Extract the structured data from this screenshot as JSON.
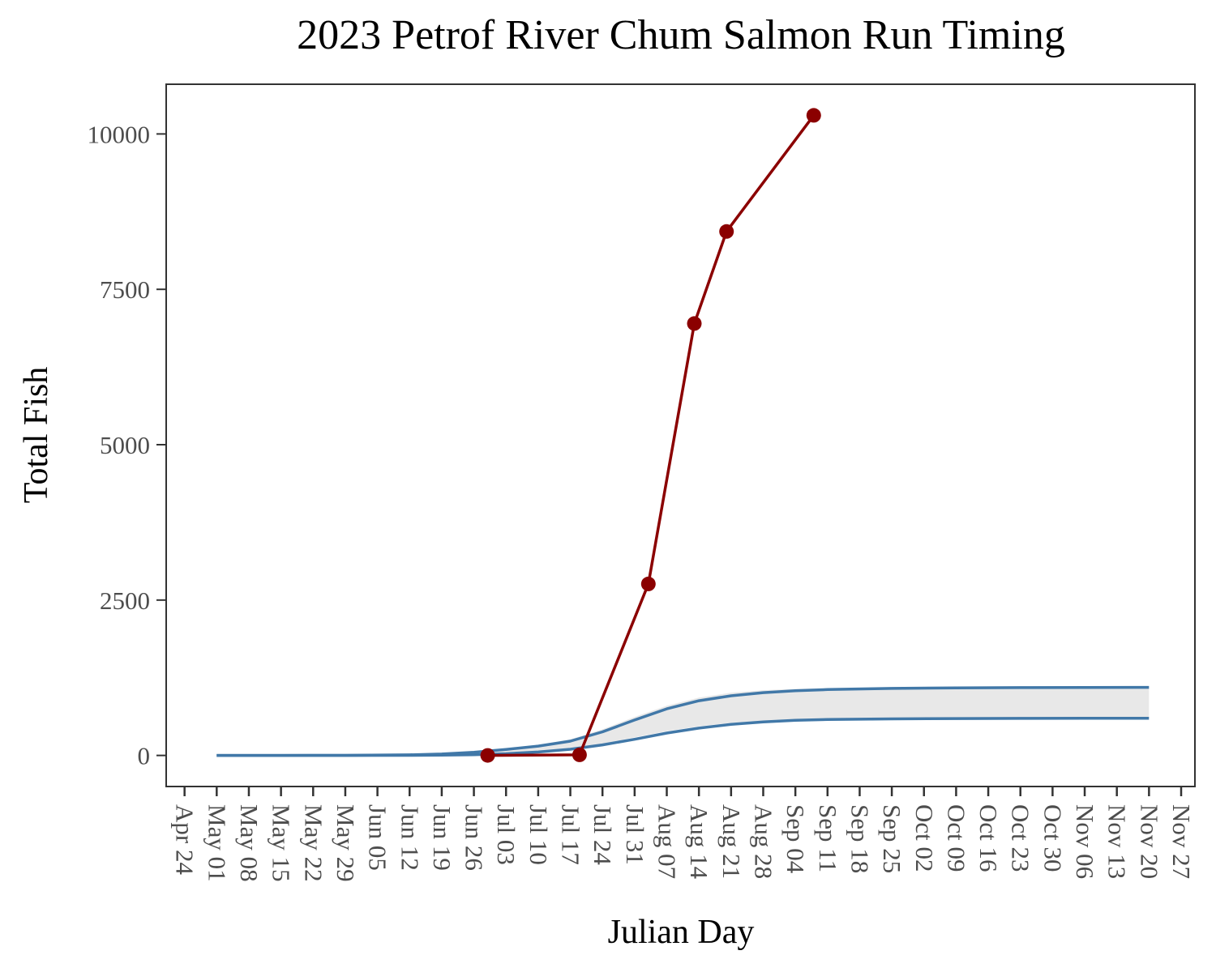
{
  "chart_data": {
    "type": "line",
    "title": "2023 Petrof River Chum Salmon Run Timing",
    "xlabel": "Julian Day",
    "ylabel": "Total Fish",
    "xlim": [
      "Apr 20",
      "Nov 30"
    ],
    "ylim": [
      -500,
      10800
    ],
    "grid": false,
    "x_ticks": [
      "Apr 24",
      "May 01",
      "May 08",
      "May 15",
      "May 22",
      "May 29",
      "Jun 05",
      "Jun 12",
      "Jun 19",
      "Jun 26",
      "Jul 03",
      "Jul 10",
      "Jul 17",
      "Jul 24",
      "Jul 31",
      "Aug 07",
      "Aug 14",
      "Aug 21",
      "Aug 28",
      "Sep 04",
      "Sep 11",
      "Sep 18",
      "Sep 25",
      "Oct 02",
      "Oct 09",
      "Oct 16",
      "Oct 23",
      "Oct 30",
      "Nov 06",
      "Nov 13",
      "Nov 20",
      "Nov 27"
    ],
    "y_ticks": [
      0,
      2500,
      5000,
      7500,
      10000
    ],
    "series": [
      {
        "kind": "band",
        "color": "#e8e8e8",
        "x": [
          "May 01",
          "May 15",
          "May 29",
          "Jun 12",
          "Jun 19",
          "Jun 26",
          "Jul 03",
          "Jul 10",
          "Jul 17",
          "Jul 24",
          "Jul 31",
          "Aug 07",
          "Aug 14",
          "Aug 21",
          "Aug 28",
          "Sep 04",
          "Sep 11",
          "Sep 25",
          "Oct 09",
          "Oct 23",
          "Nov 06",
          "Nov 20"
        ],
        "lower": [
          0,
          0,
          0,
          2,
          6,
          12,
          30,
          60,
          110,
          190,
          290,
          390,
          470,
          525,
          560,
          578,
          588,
          595,
          598,
          600,
          600,
          600
        ],
        "upper": [
          0,
          0,
          2,
          10,
          25,
          60,
          110,
          170,
          260,
          420,
          620,
          800,
          930,
          1010,
          1050,
          1070,
          1082,
          1092,
          1096,
          1098,
          1100,
          1100
        ]
      },
      {
        "kind": "line",
        "color": "#4178a8",
        "x": [
          "May 01",
          "May 15",
          "May 29",
          "Jun 12",
          "Jun 19",
          "Jun 26",
          "Jul 03",
          "Jul 10",
          "Jul 17",
          "Jul 24",
          "Jul 31",
          "Aug 07",
          "Aug 14",
          "Aug 21",
          "Aug 28",
          "Sep 04",
          "Sep 11",
          "Sep 25",
          "Oct 09",
          "Oct 23",
          "Nov 06",
          "Nov 20"
        ],
        "y": [
          0,
          0,
          2,
          10,
          22,
          50,
          95,
          150,
          230,
          380,
          570,
          750,
          880,
          960,
          1010,
          1040,
          1060,
          1078,
          1088,
          1092,
          1094,
          1095
        ]
      },
      {
        "kind": "line",
        "color": "#4178a8",
        "x": [
          "May 01",
          "May 15",
          "May 29",
          "Jun 12",
          "Jun 19",
          "Jun 26",
          "Jul 03",
          "Jul 10",
          "Jul 17",
          "Jul 24",
          "Jul 31",
          "Aug 07",
          "Aug 14",
          "Aug 21",
          "Aug 28",
          "Sep 04",
          "Sep 11",
          "Sep 25",
          "Oct 09",
          "Oct 23",
          "Nov 06",
          "Nov 20"
        ],
        "y": [
          0,
          0,
          0,
          2,
          6,
          12,
          28,
          55,
          100,
          170,
          260,
          360,
          440,
          500,
          540,
          565,
          578,
          588,
          594,
          596,
          597,
          598
        ]
      },
      {
        "kind": "line-points",
        "color": "#8b0000",
        "x": [
          "Jun 29",
          "Jul 19",
          "Aug 03",
          "Aug 13",
          "Aug 20",
          "Sep 08"
        ],
        "y": [
          0,
          10,
          2760,
          6950,
          8430,
          10300
        ]
      }
    ]
  }
}
